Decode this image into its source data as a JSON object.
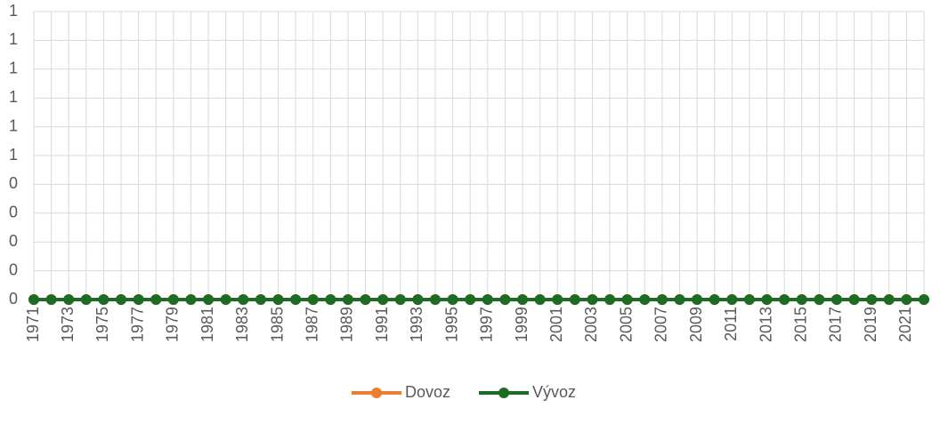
{
  "chart_data": {
    "type": "line",
    "categories": [
      "1971",
      null,
      "1973",
      null,
      "1975",
      null,
      "1977",
      null,
      "1979",
      null,
      "1981",
      null,
      "1983",
      null,
      "1985",
      null,
      "1987",
      null,
      "1989",
      null,
      "1991",
      null,
      "1993",
      null,
      "1995",
      null,
      "1997",
      null,
      "1999",
      null,
      "2001",
      null,
      "2003",
      null,
      "2005",
      null,
      "2007",
      null,
      "2009",
      null,
      "2011",
      null,
      "2013",
      null,
      "2015",
      null,
      "2017",
      null,
      "2019",
      null,
      "2021",
      null
    ],
    "series": [
      {
        "name": "Dovoz",
        "color": "#ed7d31",
        "values": [
          0,
          0,
          0,
          0,
          0,
          0,
          0,
          0,
          0,
          0,
          0,
          0,
          0,
          0,
          0,
          0,
          0,
          0,
          0,
          0,
          0,
          0,
          0,
          0,
          0,
          0,
          0,
          0,
          0,
          0,
          0,
          0,
          0,
          0,
          0,
          0,
          0,
          0,
          0,
          0,
          0,
          0,
          0,
          0,
          0,
          0,
          0,
          0,
          0,
          0,
          0,
          0
        ]
      },
      {
        "name": "Vývoz",
        "color": "#1e6b24",
        "values": [
          0,
          0,
          0,
          0,
          0,
          0,
          0,
          0,
          0,
          0,
          0,
          0,
          0,
          0,
          0,
          0,
          0,
          0,
          0,
          0,
          0,
          0,
          0,
          0,
          0,
          0,
          0,
          0,
          0,
          0,
          0,
          0,
          0,
          0,
          0,
          0,
          0,
          0,
          0,
          0,
          0,
          0,
          0,
          0,
          0,
          0,
          0,
          0,
          0,
          0,
          0,
          0
        ]
      }
    ],
    "ylim": [
      0,
      1
    ],
    "yticks": [
      0,
      {
        "value": 0.1,
        "label": "0"
      },
      {
        "value": 0.2,
        "label": "0"
      },
      {
        "value": 0.3,
        "label": "0"
      },
      {
        "value": 0.4,
        "label": "0"
      },
      {
        "value": 0.5,
        "label": "1"
      },
      {
        "value": 0.6,
        "label": "1"
      },
      {
        "value": 0.7,
        "label": "1"
      },
      {
        "value": 0.8,
        "label": "1"
      },
      {
        "value": 0.9,
        "label": "1"
      },
      1
    ],
    "grid": true,
    "legend": "bottom"
  }
}
